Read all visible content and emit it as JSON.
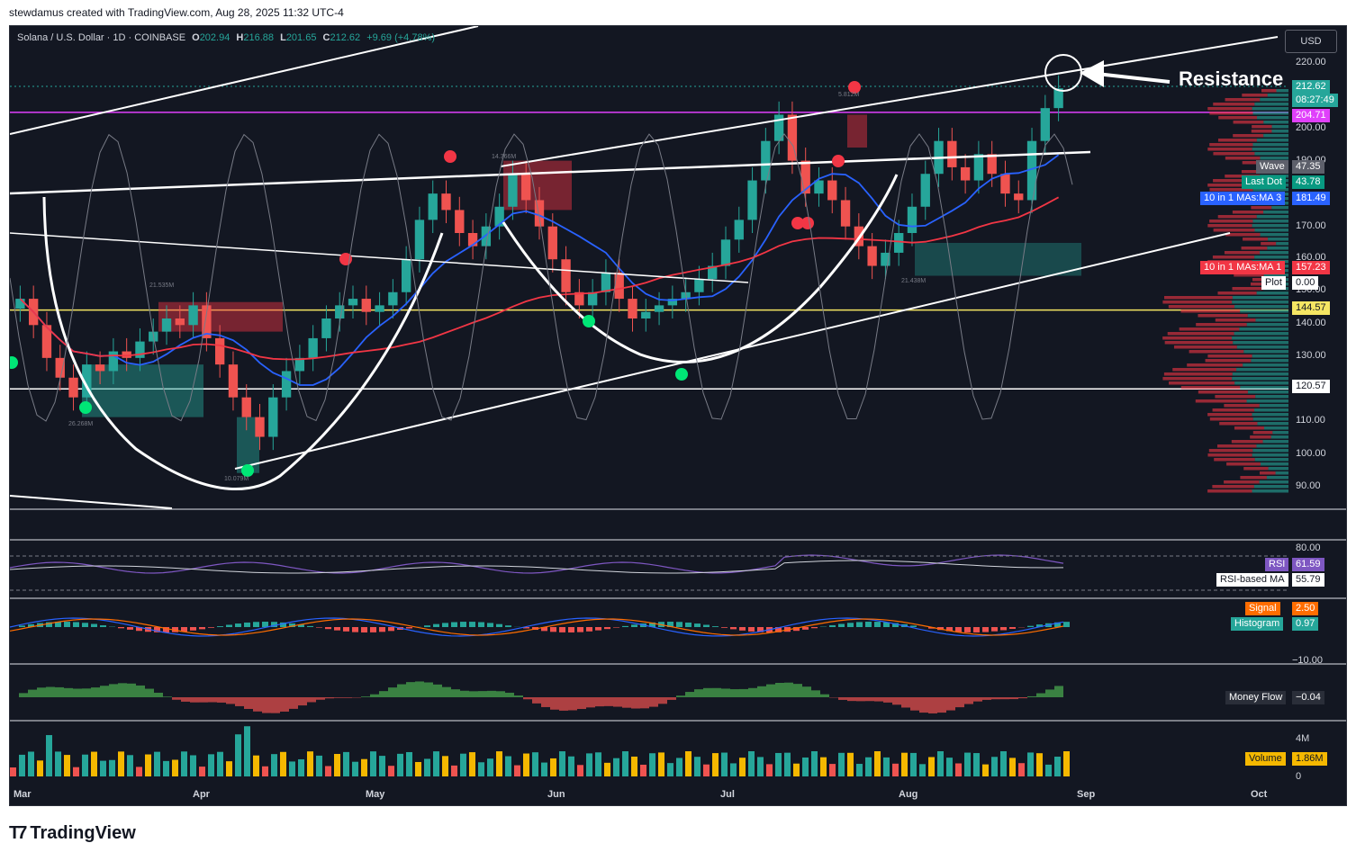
{
  "caption": "stewdamus created with TradingView.com, Aug 28, 2025 11:32 UTC-4",
  "footer": {
    "logo_text": "TradingView",
    "logo_icon": "tradingview-logo-icon"
  },
  "symbol": {
    "title": "Solana / U.S. Dollar · 1D · COINBASE",
    "open_label": "O",
    "open": "202.94",
    "high_label": "H",
    "high": "216.88",
    "low_label": "L",
    "low": "201.65",
    "close_label": "C",
    "close": "212.62",
    "change": "+9.69 (+4.78%)"
  },
  "currency": "USD",
  "annotation": "Resistance",
  "badges": {
    "last_price": "212.62",
    "countdown": "08:27:49",
    "magenta_level": "204.71",
    "wave_label": "Wave",
    "wave_value": "47.35",
    "last_dot_label": "Last Dot",
    "last_dot_value": "43.78",
    "ma3_label": "10 in 1 MAs:MA 3",
    "ma3_value": "181.49",
    "ma1_label": "10 in 1 MAs:MA 1",
    "ma1_value": "157.23",
    "plot_label": "Plot",
    "plot_value": "0.00",
    "yellow_level": "144.57",
    "white_level": "120.57",
    "rsi_label": "RSI",
    "rsi_value": "61.59",
    "rsi_ma_label": "RSI-based MA",
    "rsi_ma_value": "55.79",
    "signal_label": "Signal",
    "signal_value": "2.50",
    "histogram_label": "Histogram",
    "histogram_value": "0.97",
    "money_flow_label": "Money Flow",
    "money_flow_value": "−0.04",
    "volume_label": "Volume",
    "volume_value": "1.86M"
  },
  "price_axis": [
    "220.00",
    "200.00",
    "190.00",
    "170.00",
    "160.00",
    "150.00",
    "140.00",
    "130.00",
    "110.00",
    "100.00",
    "90.00"
  ],
  "rsi_axis": "80.00",
  "macd_axis": "−10.00",
  "volume_axis": [
    "4M",
    "0"
  ],
  "volume_markers": [
    "26.268M",
    "21.535M",
    "10.079M",
    "14.366M",
    "5.812M",
    "21.438M"
  ],
  "months": [
    "Mar",
    "Apr",
    "May",
    "Jun",
    "Jul",
    "Aug",
    "Sep",
    "Oct"
  ],
  "colors": {
    "bg": "#131722",
    "up": "#26a69a",
    "down": "#ef5350",
    "ma_blue": "#2962ff",
    "ma_red": "#f23645",
    "magenta": "#e040fb",
    "yellow": "#f5e663"
  },
  "chart_data": {
    "type": "candlestick",
    "title": "Solana / U.S. Dollar · 1D · COINBASE",
    "x_range": [
      "2025-03-01",
      "2025-10-01"
    ],
    "ylim": [
      85,
      225
    ],
    "horizontal_levels": {
      "magenta": 204.71,
      "yellow": 144.57,
      "white": 120.57
    },
    "series": [
      {
        "name": "10 in 1 MAs:MA 3",
        "last": 181.49
      },
      {
        "name": "10 in 1 MAs:MA 1",
        "last": 157.23
      },
      {
        "name": "RSI",
        "last": 61.59
      },
      {
        "name": "RSI-based MA",
        "last": 55.79
      },
      {
        "name": "Signal",
        "last": 2.5
      },
      {
        "name": "Histogram",
        "last": 0.97
      },
      {
        "name": "Money Flow",
        "last": -0.04
      },
      {
        "name": "Volume",
        "last": "1.86M"
      }
    ],
    "closes": [
      148,
      140,
      130,
      124,
      118,
      128,
      126,
      132,
      130,
      135,
      138,
      142,
      140,
      146,
      136,
      128,
      118,
      112,
      106,
      118,
      126,
      130,
      136,
      142,
      146,
      148,
      144,
      146,
      150,
      160,
      172,
      180,
      175,
      168,
      164,
      170,
      176,
      186,
      178,
      170,
      160,
      150,
      146,
      150,
      156,
      148,
      142,
      144,
      146,
      148,
      150,
      154,
      158,
      166,
      172,
      184,
      196,
      204,
      190,
      180,
      184,
      178,
      170,
      164,
      158,
      162,
      168,
      176,
      186,
      196,
      188,
      184,
      192,
      186,
      180,
      178,
      196,
      206,
      212
    ]
  }
}
